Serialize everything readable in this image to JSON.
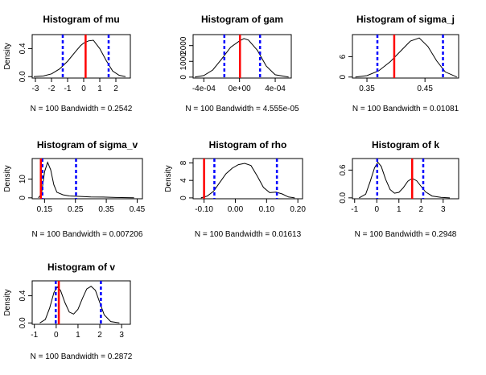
{
  "colors": {
    "density": "#000000",
    "estimate": "#ff0000",
    "interval": "#0000ff"
  },
  "chart_data": [
    {
      "type": "line",
      "title": "Histogram of mu",
      "ylabel": "Density",
      "xlabel": "N = 100   Bandwidth = 0.2542",
      "xlim": [
        -3.2,
        2.9
      ],
      "ylim": [
        -0.02,
        0.6
      ],
      "xticks": [
        -3,
        -2,
        -1,
        0,
        1,
        2
      ],
      "yticks": [
        0.0,
        0.4
      ],
      "ytick_labels": [
        "0.0",
        "0.4"
      ],
      "x": [
        -3.1,
        -2.5,
        -2.0,
        -1.5,
        -1.0,
        -0.5,
        -0.2,
        0.0,
        0.3,
        0.6,
        1.0,
        1.4,
        1.8,
        2.2,
        2.6
      ],
      "y": [
        0.0,
        0.01,
        0.04,
        0.11,
        0.22,
        0.36,
        0.44,
        0.48,
        0.51,
        0.52,
        0.4,
        0.23,
        0.08,
        0.02,
        0.0
      ],
      "estimate": 0.12,
      "interval": [
        -1.3,
        1.55
      ]
    },
    {
      "type": "line",
      "title": "Histogram of gam",
      "ylabel": "",
      "xlabel": "N = 100   Bandwidth = 4.555e-05",
      "xlim": [
        -0.00052,
        0.00058
      ],
      "ylim": [
        -60,
        2700
      ],
      "xticks": [
        -0.0004,
        0.0,
        0.0004
      ],
      "xtick_labels": [
        "-4e-04",
        "0e+00",
        "4e-04"
      ],
      "yticks": [
        0,
        1000,
        2000
      ],
      "ytick_labels": [
        "0",
        "1000",
        "2000"
      ],
      "x": [
        -0.0005,
        -0.0004,
        -0.0003,
        -0.0002,
        -0.0001,
        0.0,
        5e-05,
        0.0001,
        0.0002,
        0.0003,
        0.0004,
        0.00055
      ],
      "y": [
        0,
        100,
        450,
        1150,
        1900,
        2300,
        2450,
        2350,
        1700,
        700,
        150,
        0
      ],
      "estimate": 5e-06,
      "interval": [
        -0.00017,
        0.00023
      ]
    },
    {
      "type": "line",
      "title": "Histogram of sigma_j",
      "ylabel": "",
      "xlabel": "N = 100   Bandwidth = 0.01081",
      "xlim": [
        0.325,
        0.508
      ],
      "ylim": [
        -0.3,
        12.5
      ],
      "xticks": [
        0.35,
        0.45
      ],
      "yticks": [
        0,
        6
      ],
      "ytick_labels": [
        "0",
        "6"
      ],
      "x": [
        0.33,
        0.35,
        0.37,
        0.39,
        0.41,
        0.425,
        0.44,
        0.455,
        0.47,
        0.485,
        0.505
      ],
      "y": [
        0.0,
        0.4,
        1.8,
        4.5,
        8.0,
        10.6,
        11.5,
        9.0,
        4.8,
        1.5,
        0.0
      ],
      "estimate": 0.397,
      "interval": [
        0.368,
        0.481
      ]
    },
    {
      "type": "line",
      "title": "Histogram of sigma_v",
      "ylabel": "Density",
      "xlabel": "N = 100   Bandwidth = 0.007206",
      "xlim": [
        0.11,
        0.467
      ],
      "ylim": [
        -0.5,
        21
      ],
      "xticks": [
        0.15,
        0.25,
        0.35,
        0.45
      ],
      "yticks": [
        0,
        10
      ],
      "ytick_labels": [
        "0",
        "10"
      ],
      "x": [
        0.13,
        0.14,
        0.15,
        0.16,
        0.17,
        0.18,
        0.19,
        0.21,
        0.23,
        0.26,
        0.3,
        0.34,
        0.38,
        0.42,
        0.44
      ],
      "y": [
        0.0,
        2.0,
        14.0,
        19.0,
        15.0,
        7.0,
        3.0,
        1.6,
        1.0,
        0.8,
        0.5,
        0.4,
        0.2,
        0.1,
        0.0
      ],
      "estimate": 0.138,
      "interval": [
        0.143,
        0.252
      ]
    },
    {
      "type": "line",
      "title": "Histogram of rho",
      "ylabel": "Density",
      "xlabel": "N = 100   Bandwidth = 0.01613",
      "xlim": [
        -0.135,
        0.215
      ],
      "ylim": [
        -0.2,
        9
      ],
      "xticks": [
        -0.1,
        0.0,
        0.1,
        0.2
      ],
      "xtick_labels": [
        "-0.10",
        "0.00",
        "0.10",
        "0.20"
      ],
      "yticks": [
        0,
        4,
        8
      ],
      "ytick_labels": [
        "0",
        "4",
        "8"
      ],
      "x": [
        -0.11,
        -0.09,
        -0.07,
        -0.05,
        -0.03,
        -0.01,
        0.01,
        0.03,
        0.05,
        0.07,
        0.09,
        0.11,
        0.13,
        0.15,
        0.17,
        0.19
      ],
      "y": [
        0.0,
        0.4,
        1.5,
        3.5,
        5.5,
        6.8,
        7.6,
        7.9,
        7.4,
        5.0,
        2.4,
        1.2,
        1.3,
        0.9,
        0.2,
        0.0
      ],
      "estimate": -0.1,
      "interval": [
        -0.067,
        0.133
      ]
    },
    {
      "type": "line",
      "title": "Histogram of k",
      "ylabel": "",
      "xlabel": "N = 100   Bandwidth = 0.2948",
      "xlim": [
        -1.1,
        3.7
      ],
      "ylim": [
        -0.02,
        0.85
      ],
      "xticks": [
        -1,
        0,
        1,
        2,
        3
      ],
      "yticks": [
        0.0,
        0.6
      ],
      "ytick_labels": [
        "0.0",
        "0.6"
      ],
      "x": [
        -0.8,
        -0.5,
        -0.3,
        -0.1,
        0.05,
        0.2,
        0.4,
        0.6,
        0.8,
        1.0,
        1.2,
        1.4,
        1.6,
        1.8,
        2.0,
        2.2,
        2.5,
        2.9,
        3.3
      ],
      "y": [
        0.0,
        0.08,
        0.35,
        0.65,
        0.77,
        0.68,
        0.4,
        0.18,
        0.1,
        0.12,
        0.22,
        0.36,
        0.42,
        0.37,
        0.25,
        0.13,
        0.04,
        0.01,
        0.0
      ],
      "estimate": 1.6,
      "interval": [
        0.02,
        2.1
      ]
    },
    {
      "type": "line",
      "title": "Histogram of v",
      "ylabel": "Density",
      "xlabel": "N = 100   Bandwidth = 0.2872",
      "xlim": [
        -1.1,
        3.4
      ],
      "ylim": [
        -0.02,
        0.62
      ],
      "xticks": [
        -1,
        0,
        1,
        2,
        3
      ],
      "yticks": [
        0.0,
        0.4
      ],
      "ytick_labels": [
        "0.0",
        "0.4"
      ],
      "x": [
        -0.75,
        -0.5,
        -0.3,
        -0.1,
        0.05,
        0.2,
        0.4,
        0.6,
        0.8,
        1.0,
        1.2,
        1.4,
        1.6,
        1.8,
        2.0,
        2.2,
        2.5,
        2.9
      ],
      "y": [
        0.0,
        0.05,
        0.22,
        0.45,
        0.53,
        0.48,
        0.3,
        0.16,
        0.13,
        0.2,
        0.36,
        0.5,
        0.54,
        0.48,
        0.3,
        0.12,
        0.02,
        0.0
      ],
      "estimate": 0.12,
      "interval": [
        -0.02,
        2.05
      ]
    }
  ]
}
